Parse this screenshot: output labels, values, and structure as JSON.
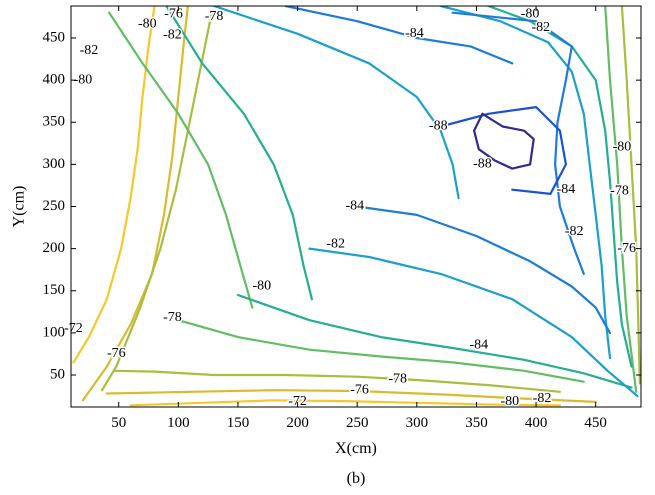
{
  "caption": "(b)",
  "chart_data": {
    "type": "contour",
    "title": "",
    "xlabel": "X(cm)",
    "ylabel": "Y(cm)",
    "xlim": [
      10,
      488
    ],
    "ylim": [
      12,
      488
    ],
    "xticks": [
      50,
      100,
      150,
      200,
      250,
      300,
      350,
      400,
      450
    ],
    "yticks": [
      50,
      100,
      150,
      200,
      250,
      300,
      350,
      400,
      450
    ],
    "grid": false,
    "colorscale": "parula",
    "levels": [
      {
        "level": -72,
        "color": "#f4c92a"
      },
      {
        "level": -74,
        "color": "#d9bb2f"
      },
      {
        "level": -76,
        "color": "#a9bd3f"
      },
      {
        "level": -78,
        "color": "#62bd64"
      },
      {
        "level": -80,
        "color": "#25ae91"
      },
      {
        "level": -82,
        "color": "#1d9fcb"
      },
      {
        "level": -84,
        "color": "#1e7bd6"
      },
      {
        "level": -86,
        "color": "#1e50d2"
      },
      {
        "level": -88,
        "color": "#2f2a8f"
      }
    ],
    "contours": [
      {
        "level": -72,
        "points": [
          [
            12,
            65
          ],
          [
            25,
            95
          ],
          [
            40,
            140
          ],
          [
            52,
            200
          ],
          [
            60,
            260
          ],
          [
            66,
            320
          ],
          [
            70,
            380
          ],
          [
            75,
            440
          ],
          [
            80,
            488
          ]
        ]
      },
      {
        "level": -72,
        "points": [
          [
            60,
            14
          ],
          [
            120,
            17
          ],
          [
            180,
            20
          ],
          [
            240,
            19
          ],
          [
            300,
            17
          ],
          [
            360,
            15
          ],
          [
            420,
            14
          ]
        ]
      },
      {
        "level": -74,
        "points": [
          [
            20,
            20
          ],
          [
            40,
            60
          ],
          [
            60,
            110
          ],
          [
            78,
            170
          ],
          [
            88,
            240
          ],
          [
            95,
            310
          ],
          [
            100,
            380
          ],
          [
            105,
            450
          ],
          [
            108,
            488
          ]
        ]
      },
      {
        "level": -74,
        "points": [
          [
            40,
            28
          ],
          [
            110,
            30
          ],
          [
            180,
            32
          ],
          [
            250,
            31
          ],
          [
            320,
            27
          ],
          [
            390,
            22
          ],
          [
            450,
            18
          ]
        ]
      },
      {
        "level": -76,
        "points": [
          [
            36,
            32
          ],
          [
            48,
            60
          ],
          [
            68,
            130
          ],
          [
            85,
            200
          ],
          [
            98,
            270
          ],
          [
            108,
            340
          ],
          [
            118,
            410
          ],
          [
            128,
            480
          ]
        ]
      },
      {
        "level": -76,
        "points": [
          [
            46,
            55
          ],
          [
            80,
            54
          ],
          [
            130,
            50
          ],
          [
            190,
            50
          ],
          [
            250,
            48
          ],
          [
            300,
            44
          ],
          [
            360,
            38
          ],
          [
            420,
            30
          ]
        ]
      },
      {
        "level": -76,
        "points": [
          [
            472,
            488
          ],
          [
            476,
            400
          ],
          [
            480,
            300
          ],
          [
            484,
            200
          ],
          [
            486,
            100
          ],
          [
            487,
            40
          ]
        ]
      },
      {
        "level": -78,
        "points": [
          [
            42,
            480
          ],
          [
            70,
            420
          ],
          [
            100,
            360
          ],
          [
            125,
            300
          ],
          [
            140,
            240
          ],
          [
            152,
            180
          ],
          [
            162,
            130
          ]
        ]
      },
      {
        "level": -78,
        "points": [
          [
            100,
            115
          ],
          [
            150,
            95
          ],
          [
            210,
            80
          ],
          [
            270,
            72
          ],
          [
            330,
            65
          ],
          [
            390,
            55
          ],
          [
            440,
            42
          ]
        ]
      },
      {
        "level": -78,
        "points": [
          [
            458,
            488
          ],
          [
            462,
            400
          ],
          [
            468,
            300
          ],
          [
            472,
            200
          ],
          [
            476,
            120
          ],
          [
            484,
            30
          ]
        ]
      },
      {
        "level": -80,
        "points": [
          [
            90,
            488
          ],
          [
            120,
            420
          ],
          [
            155,
            360
          ],
          [
            180,
            300
          ],
          [
            196,
            240
          ],
          [
            205,
            180
          ],
          [
            212,
            140
          ]
        ]
      },
      {
        "level": -80,
        "points": [
          [
            150,
            145
          ],
          [
            210,
            115
          ],
          [
            270,
            95
          ],
          [
            330,
            82
          ],
          [
            390,
            68
          ],
          [
            440,
            52
          ],
          [
            480,
            35
          ]
        ]
      },
      {
        "level": -80,
        "points": [
          [
            360,
            488
          ],
          [
            395,
            470
          ],
          [
            430,
            440
          ],
          [
            450,
            400
          ],
          [
            458,
            340
          ],
          [
            462,
            280
          ],
          [
            465,
            220
          ],
          [
            468,
            160
          ],
          [
            472,
            110
          ],
          [
            480,
            60
          ]
        ]
      },
      {
        "level": -82,
        "points": [
          [
            130,
            488
          ],
          [
            200,
            455
          ],
          [
            260,
            420
          ],
          [
            300,
            380
          ],
          [
            320,
            340
          ],
          [
            330,
            300
          ],
          [
            335,
            260
          ]
        ]
      },
      {
        "level": -82,
        "points": [
          [
            210,
            200
          ],
          [
            260,
            190
          ],
          [
            320,
            170
          ],
          [
            380,
            140
          ],
          [
            430,
            95
          ],
          [
            460,
            55
          ],
          [
            485,
            25
          ]
        ]
      },
      {
        "level": -82,
        "points": [
          [
            320,
            488
          ],
          [
            370,
            470
          ],
          [
            410,
            445
          ],
          [
            430,
            410
          ],
          [
            440,
            360
          ],
          [
            445,
            300
          ],
          [
            450,
            240
          ],
          [
            455,
            180
          ],
          [
            458,
            120
          ],
          [
            462,
            70
          ]
        ]
      },
      {
        "level": -84,
        "points": [
          [
            190,
            488
          ],
          [
            250,
            470
          ],
          [
            300,
            450
          ],
          [
            345,
            440
          ],
          [
            380,
            420
          ]
        ]
      },
      {
        "level": -84,
        "points": [
          [
            250,
            250
          ],
          [
            300,
            240
          ],
          [
            350,
            215
          ],
          [
            395,
            185
          ],
          [
            430,
            155
          ],
          [
            450,
            130
          ],
          [
            462,
            100
          ]
        ]
      },
      {
        "level": -84,
        "points": [
          [
            330,
            480
          ],
          [
            400,
            470
          ],
          [
            430,
            440
          ],
          [
            425,
            400
          ],
          [
            418,
            350
          ],
          [
            416,
            300
          ],
          [
            420,
            250
          ],
          [
            432,
            200
          ],
          [
            440,
            170
          ]
        ]
      },
      {
        "level": -86,
        "points": [
          [
            320,
            345
          ],
          [
            360,
            360
          ],
          [
            400,
            368
          ],
          [
            420,
            340
          ],
          [
            425,
            300
          ],
          [
            412,
            265
          ],
          [
            380,
            270
          ]
        ]
      },
      {
        "level": -88,
        "points": [
          [
            355,
            360
          ],
          [
            372,
            345
          ],
          [
            390,
            340
          ],
          [
            398,
            330
          ],
          [
            395,
            300
          ],
          [
            380,
            295
          ],
          [
            365,
            305
          ],
          [
            352,
            318
          ],
          [
            348,
            340
          ],
          [
            355,
            360
          ]
        ]
      }
    ],
    "labels": [
      {
        "text": "-76",
        "x": 96,
        "y": 478
      },
      {
        "text": "-78",
        "x": 130,
        "y": 475
      },
      {
        "text": "-80",
        "x": 74,
        "y": 466
      },
      {
        "text": "-82",
        "x": 95,
        "y": 453
      },
      {
        "text": "-84",
        "x": 298,
        "y": 455
      },
      {
        "text": "-80",
        "x": 395,
        "y": 478
      },
      {
        "text": "-82",
        "x": 404,
        "y": 462
      },
      {
        "text": "-82",
        "x": 25,
        "y": 435
      },
      {
        "text": "-80",
        "x": 20,
        "y": 400
      },
      {
        "text": "-88",
        "x": 318,
        "y": 345
      },
      {
        "text": "-88",
        "x": 355,
        "y": 300
      },
      {
        "text": "-84",
        "x": 248,
        "y": 250
      },
      {
        "text": "-82",
        "x": 232,
        "y": 205
      },
      {
        "text": "-80",
        "x": 170,
        "y": 155
      },
      {
        "text": "-78",
        "x": 95,
        "y": 118
      },
      {
        "text": "-76",
        "x": 48,
        "y": 75
      },
      {
        "text": "-72",
        "x": 12,
        "y": 105
      },
      {
        "text": "-72",
        "x": 200,
        "y": 18
      },
      {
        "text": "-76",
        "x": 252,
        "y": 32
      },
      {
        "text": "-78",
        "x": 284,
        "y": 45
      },
      {
        "text": "-84",
        "x": 352,
        "y": 85
      },
      {
        "text": "-80",
        "x": 378,
        "y": 18
      },
      {
        "text": "-82",
        "x": 405,
        "y": 22
      },
      {
        "text": "-84",
        "x": 425,
        "y": 270
      },
      {
        "text": "-82",
        "x": 432,
        "y": 220
      },
      {
        "text": "-80",
        "x": 472,
        "y": 320
      },
      {
        "text": "-78",
        "x": 470,
        "y": 268
      },
      {
        "text": "-76",
        "x": 476,
        "y": 200
      }
    ]
  }
}
